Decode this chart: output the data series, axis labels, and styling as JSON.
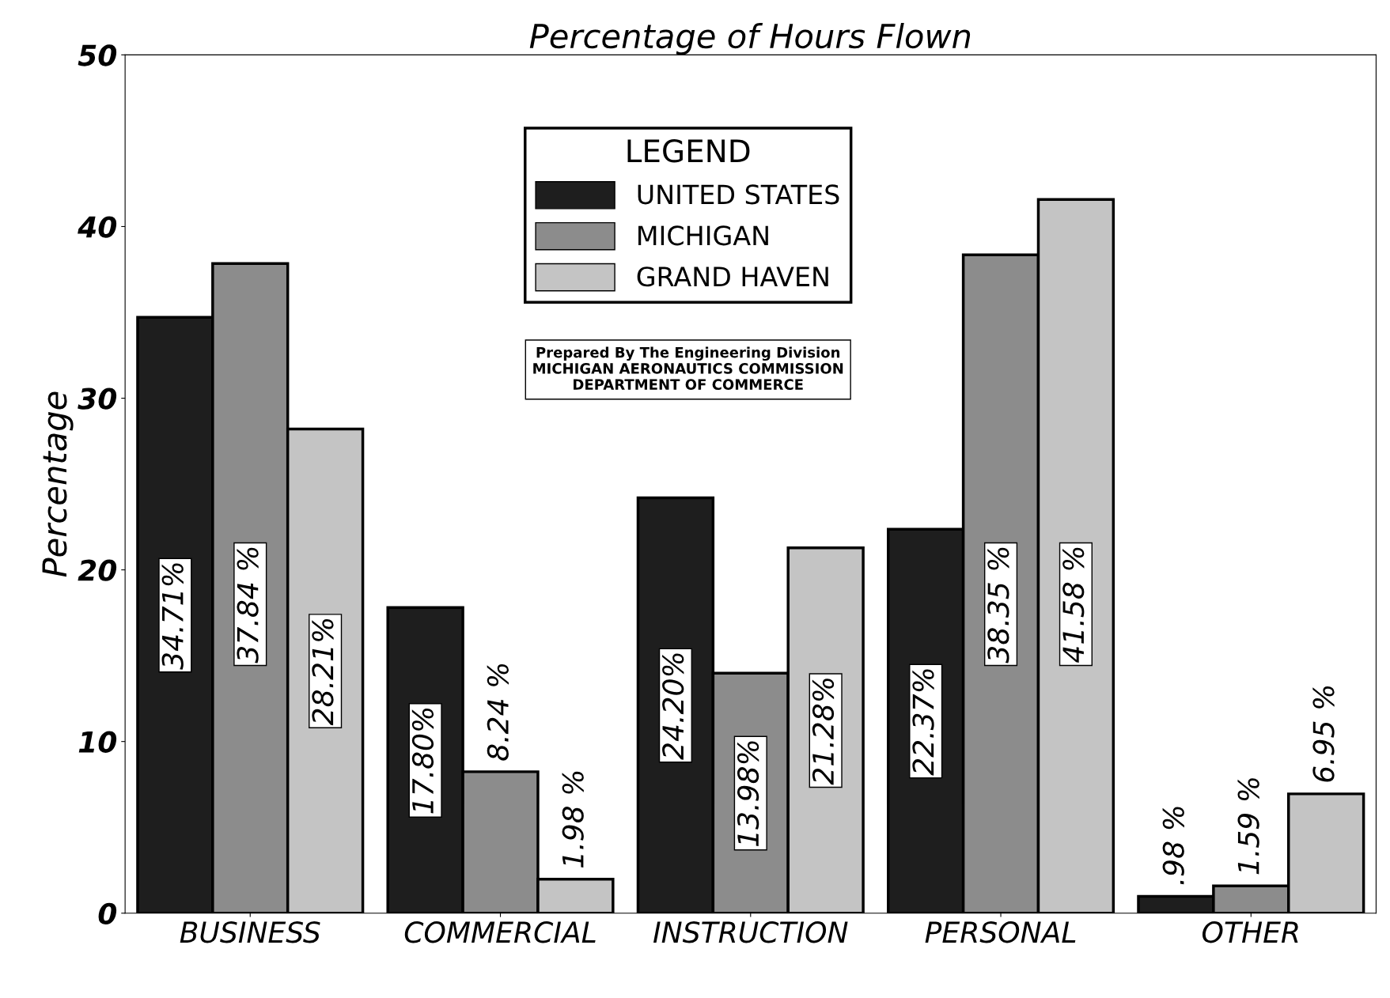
{
  "chart_data": {
    "type": "bar",
    "title": "Percentage of Hours Flown",
    "ylabel": "Percentage",
    "categories": [
      "BUSINESS",
      "COMMERCIAL",
      "INSTRUCTION",
      "PERSONAL",
      "OTHER"
    ],
    "series": [
      {
        "name": "UNITED STATES",
        "color": "#1e1e1e",
        "values": [
          34.71,
          17.8,
          24.2,
          22.37,
          0.98
        ],
        "value_labels": [
          "34.71%",
          "17.80%",
          "24.20%",
          "22.37%",
          ".98 %"
        ]
      },
      {
        "name": "MICHIGAN",
        "color": "#8c8c8c",
        "values": [
          37.84,
          8.24,
          13.98,
          38.35,
          1.59
        ],
        "value_labels": [
          "37.84 %",
          "8.24 %",
          "13.98%",
          "38.35 %",
          "1.59 %"
        ]
      },
      {
        "name": "GRAND HAVEN",
        "color": "#c4c4c4",
        "values": [
          28.21,
          1.98,
          21.28,
          41.58,
          6.95
        ],
        "value_labels": [
          "28.21%",
          "1.98 %",
          "21.28%",
          "41.58 %",
          "6.95 %"
        ]
      }
    ],
    "legend_title": "LEGEND",
    "ylim": [
      0,
      50
    ],
    "yticks": [
      0,
      10,
      20,
      30,
      40,
      50
    ],
    "grid": false,
    "legend": "top",
    "annotations": [
      "Prepared By The Engineering Division\nMICHIGAN AERONAUTICS COMMISSION\nDEPARTMENT OF COMMERCE"
    ]
  }
}
